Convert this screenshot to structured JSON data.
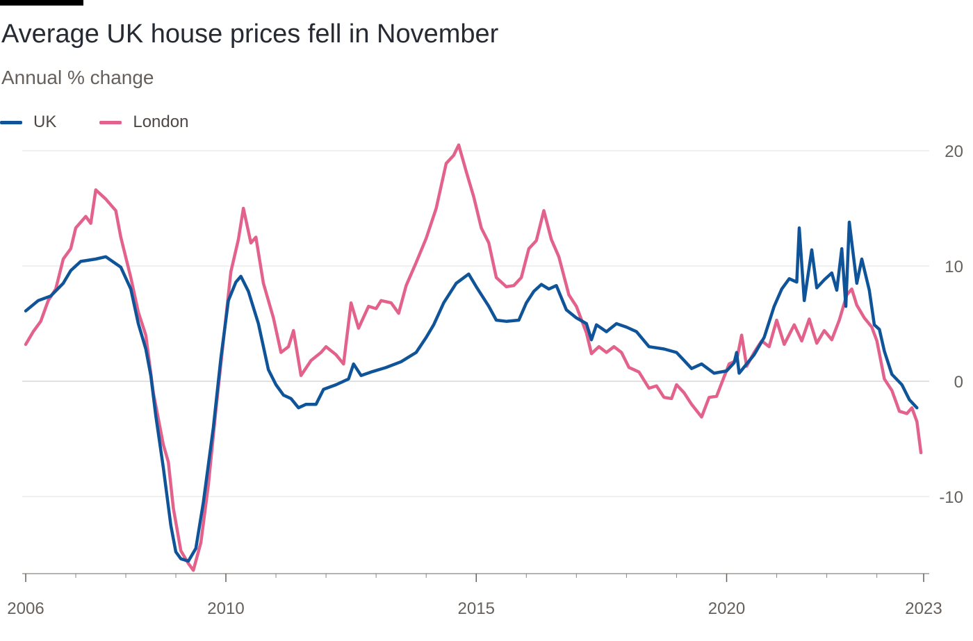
{
  "header": {
    "title": "Average UK house prices fell in November",
    "subtitle": "Annual % change"
  },
  "legend": [
    {
      "label": "UK",
      "color": "#0f5499"
    },
    {
      "label": "London",
      "color": "#e3628c"
    }
  ],
  "chart_data": {
    "type": "line",
    "title": "Average UK house prices fell in November",
    "subtitle": "Annual % change",
    "xlabel": "",
    "ylabel": "",
    "xlim": [
      2006.0,
      2023.0
    ],
    "ylim": [
      -16.5,
      20
    ],
    "yticks": [
      20,
      10,
      0,
      -10
    ],
    "ytick_labels": [
      "20",
      "10",
      "0",
      "-10"
    ],
    "xticks": [
      2006,
      2010,
      2015,
      2020,
      2023
    ],
    "xtick_labels": [
      "2006",
      "2010",
      "2015",
      "2020",
      "2023"
    ],
    "grid": true,
    "legend_position": "top-left",
    "series": [
      {
        "name": "UK",
        "color": "#0f5499",
        "points": [
          [
            2006.0,
            6.1
          ],
          [
            2006.25,
            7.0
          ],
          [
            2006.5,
            7.4
          ],
          [
            2006.75,
            8.5
          ],
          [
            2006.9,
            9.6
          ],
          [
            2007.1,
            10.4
          ],
          [
            2007.4,
            10.6
          ],
          [
            2007.6,
            10.8
          ],
          [
            2007.9,
            9.9
          ],
          [
            2008.1,
            8.0
          ],
          [
            2008.25,
            5.0
          ],
          [
            2008.4,
            2.8
          ],
          [
            2008.5,
            0.5
          ],
          [
            2008.6,
            -3.0
          ],
          [
            2008.75,
            -7.5
          ],
          [
            2008.9,
            -12.5
          ],
          [
            2009.0,
            -14.8
          ],
          [
            2009.1,
            -15.4
          ],
          [
            2009.25,
            -15.6
          ],
          [
            2009.4,
            -14.5
          ],
          [
            2009.55,
            -10.5
          ],
          [
            2009.75,
            -4.0
          ],
          [
            2009.9,
            2.0
          ],
          [
            2010.05,
            7.0
          ],
          [
            2010.2,
            8.6
          ],
          [
            2010.3,
            9.1
          ],
          [
            2010.45,
            7.8
          ],
          [
            2010.65,
            5.0
          ],
          [
            2010.85,
            1.0
          ],
          [
            2011.0,
            -0.3
          ],
          [
            2011.15,
            -1.2
          ],
          [
            2011.3,
            -1.5
          ],
          [
            2011.45,
            -2.3
          ],
          [
            2011.6,
            -2.0
          ],
          [
            2011.8,
            -2.0
          ],
          [
            2011.95,
            -0.7
          ],
          [
            2012.2,
            -0.3
          ],
          [
            2012.45,
            0.2
          ],
          [
            2012.55,
            1.5
          ],
          [
            2012.7,
            0.5
          ],
          [
            2012.9,
            0.8
          ],
          [
            2013.2,
            1.2
          ],
          [
            2013.5,
            1.7
          ],
          [
            2013.8,
            2.5
          ],
          [
            2014.0,
            3.8
          ],
          [
            2014.15,
            4.9
          ],
          [
            2014.35,
            6.8
          ],
          [
            2014.6,
            8.5
          ],
          [
            2014.85,
            9.3
          ],
          [
            2015.0,
            8.2
          ],
          [
            2015.25,
            6.5
          ],
          [
            2015.4,
            5.3
          ],
          [
            2015.6,
            5.2
          ],
          [
            2015.85,
            5.3
          ],
          [
            2016.0,
            6.8
          ],
          [
            2016.15,
            7.8
          ],
          [
            2016.3,
            8.4
          ],
          [
            2016.45,
            8.0
          ],
          [
            2016.6,
            8.3
          ],
          [
            2016.8,
            6.2
          ],
          [
            2017.0,
            5.5
          ],
          [
            2017.2,
            5.0
          ],
          [
            2017.3,
            3.6
          ],
          [
            2017.4,
            4.9
          ],
          [
            2017.6,
            4.3
          ],
          [
            2017.8,
            5.0
          ],
          [
            2018.0,
            4.7
          ],
          [
            2018.2,
            4.3
          ],
          [
            2018.45,
            3.0
          ],
          [
            2018.75,
            2.8
          ],
          [
            2019.0,
            2.5
          ],
          [
            2019.15,
            1.8
          ],
          [
            2019.3,
            1.1
          ],
          [
            2019.5,
            1.5
          ],
          [
            2019.75,
            0.7
          ],
          [
            2020.0,
            0.9
          ],
          [
            2020.15,
            1.6
          ],
          [
            2020.2,
            2.5
          ],
          [
            2020.25,
            0.7
          ],
          [
            2020.4,
            1.5
          ],
          [
            2020.55,
            2.3
          ],
          [
            2020.75,
            3.8
          ],
          [
            2020.95,
            6.5
          ],
          [
            2021.1,
            8.0
          ],
          [
            2021.25,
            8.9
          ],
          [
            2021.4,
            8.6
          ],
          [
            2021.45,
            13.3
          ],
          [
            2021.55,
            7.0
          ],
          [
            2021.7,
            11.4
          ],
          [
            2021.8,
            8.1
          ],
          [
            2021.95,
            8.8
          ],
          [
            2022.1,
            9.4
          ],
          [
            2022.2,
            7.9
          ],
          [
            2022.3,
            11.5
          ],
          [
            2022.38,
            6.5
          ],
          [
            2022.45,
            13.8
          ],
          [
            2022.6,
            8.5
          ],
          [
            2022.7,
            10.6
          ],
          [
            2022.85,
            7.9
          ],
          [
            2022.95,
            4.9
          ],
          [
            2023.05,
            4.5
          ],
          [
            2023.15,
            2.6
          ],
          [
            2023.3,
            0.6
          ],
          [
            2023.5,
            -0.3
          ],
          [
            2023.65,
            -1.6
          ],
          [
            2023.8,
            -2.3
          ]
        ]
      },
      {
        "name": "London",
        "color": "#e3628c",
        "points": [
          [
            2006.0,
            3.2
          ],
          [
            2006.15,
            4.3
          ],
          [
            2006.3,
            5.2
          ],
          [
            2006.45,
            7.0
          ],
          [
            2006.6,
            8.0
          ],
          [
            2006.75,
            10.6
          ],
          [
            2006.9,
            11.5
          ],
          [
            2007.0,
            13.3
          ],
          [
            2007.2,
            14.3
          ],
          [
            2007.3,
            13.7
          ],
          [
            2007.4,
            16.6
          ],
          [
            2007.6,
            15.8
          ],
          [
            2007.8,
            14.8
          ],
          [
            2007.9,
            12.5
          ],
          [
            2008.1,
            9.0
          ],
          [
            2008.25,
            6.0
          ],
          [
            2008.4,
            4.0
          ],
          [
            2008.55,
            -1.0
          ],
          [
            2008.75,
            -5.5
          ],
          [
            2008.85,
            -7.0
          ],
          [
            2008.95,
            -11.0
          ],
          [
            2009.1,
            -14.7
          ],
          [
            2009.25,
            -15.8
          ],
          [
            2009.35,
            -16.4
          ],
          [
            2009.5,
            -14.0
          ],
          [
            2009.65,
            -9.0
          ],
          [
            2009.8,
            -2.5
          ],
          [
            2009.95,
            3.5
          ],
          [
            2010.1,
            9.5
          ],
          [
            2010.25,
            12.3
          ],
          [
            2010.35,
            15.0
          ],
          [
            2010.5,
            12.0
          ],
          [
            2010.6,
            12.5
          ],
          [
            2010.75,
            8.5
          ],
          [
            2010.95,
            5.5
          ],
          [
            2011.1,
            2.5
          ],
          [
            2011.25,
            3.0
          ],
          [
            2011.35,
            4.4
          ],
          [
            2011.5,
            0.5
          ],
          [
            2011.7,
            1.8
          ],
          [
            2011.9,
            2.5
          ],
          [
            2012.0,
            3.0
          ],
          [
            2012.2,
            2.3
          ],
          [
            2012.35,
            1.5
          ],
          [
            2012.5,
            6.8
          ],
          [
            2012.65,
            4.6
          ],
          [
            2012.85,
            6.5
          ],
          [
            2013.0,
            6.3
          ],
          [
            2013.1,
            7.0
          ],
          [
            2013.3,
            6.8
          ],
          [
            2013.45,
            5.9
          ],
          [
            2013.6,
            8.3
          ],
          [
            2013.8,
            10.3
          ],
          [
            2014.0,
            12.4
          ],
          [
            2014.2,
            15.0
          ],
          [
            2014.4,
            18.9
          ],
          [
            2014.55,
            19.6
          ],
          [
            2014.65,
            20.5
          ],
          [
            2014.8,
            18.2
          ],
          [
            2014.95,
            16.0
          ],
          [
            2015.1,
            13.3
          ],
          [
            2015.25,
            12.0
          ],
          [
            2015.4,
            9.0
          ],
          [
            2015.6,
            8.2
          ],
          [
            2015.75,
            8.3
          ],
          [
            2015.9,
            9.0
          ],
          [
            2016.05,
            11.5
          ],
          [
            2016.2,
            12.2
          ],
          [
            2016.35,
            14.8
          ],
          [
            2016.5,
            12.3
          ],
          [
            2016.65,
            10.8
          ],
          [
            2016.85,
            7.5
          ],
          [
            2017.0,
            6.5
          ],
          [
            2017.2,
            4.2
          ],
          [
            2017.3,
            2.4
          ],
          [
            2017.45,
            3.0
          ],
          [
            2017.6,
            2.5
          ],
          [
            2017.75,
            3.0
          ],
          [
            2017.9,
            2.5
          ],
          [
            2018.05,
            1.2
          ],
          [
            2018.25,
            0.8
          ],
          [
            2018.45,
            -0.6
          ],
          [
            2018.6,
            -0.4
          ],
          [
            2018.75,
            -1.4
          ],
          [
            2018.9,
            -1.5
          ],
          [
            2019.0,
            -0.3
          ],
          [
            2019.15,
            -1.0
          ],
          [
            2019.3,
            -2.0
          ],
          [
            2019.5,
            -3.1
          ],
          [
            2019.65,
            -1.4
          ],
          [
            2019.8,
            -1.3
          ],
          [
            2019.95,
            0.4
          ],
          [
            2020.05,
            1.5
          ],
          [
            2020.2,
            1.8
          ],
          [
            2020.3,
            4.0
          ],
          [
            2020.4,
            1.3
          ],
          [
            2020.55,
            2.5
          ],
          [
            2020.7,
            3.5
          ],
          [
            2020.85,
            3.0
          ],
          [
            2021.0,
            5.3
          ],
          [
            2021.15,
            3.2
          ],
          [
            2021.35,
            4.9
          ],
          [
            2021.5,
            3.5
          ],
          [
            2021.65,
            5.4
          ],
          [
            2021.8,
            3.3
          ],
          [
            2021.95,
            4.4
          ],
          [
            2022.1,
            3.6
          ],
          [
            2022.25,
            5.3
          ],
          [
            2022.4,
            7.5
          ],
          [
            2022.5,
            8.0
          ],
          [
            2022.6,
            6.6
          ],
          [
            2022.75,
            5.5
          ],
          [
            2022.9,
            4.7
          ],
          [
            2023.0,
            3.5
          ],
          [
            2023.15,
            0.2
          ],
          [
            2023.3,
            -0.8
          ],
          [
            2023.45,
            -2.6
          ],
          [
            2023.6,
            -2.8
          ],
          [
            2023.7,
            -2.3
          ],
          [
            2023.8,
            -3.5
          ],
          [
            2023.88,
            -6.2
          ]
        ]
      }
    ]
  }
}
